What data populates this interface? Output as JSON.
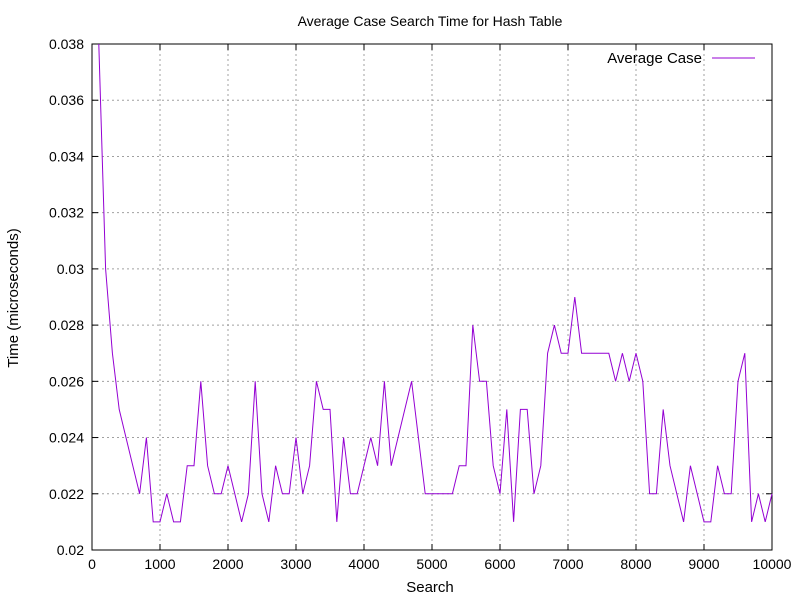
{
  "chart_data": {
    "type": "line",
    "title": "Average Case Search Time for Hash Table",
    "xlabel": "Search",
    "ylabel": "Time (microseconds)",
    "xlim": [
      0,
      10000
    ],
    "ylim": [
      0.02,
      0.038
    ],
    "x_ticks": [
      "0",
      "1000",
      "2000",
      "3000",
      "4000",
      "5000",
      "6000",
      "7000",
      "8000",
      "9000",
      "10000"
    ],
    "y_ticks": [
      "0.02",
      "0.022",
      "0.024",
      "0.026",
      "0.028",
      "0.03",
      "0.032",
      "0.034",
      "0.036",
      "0.038"
    ],
    "grid": true,
    "legend_position": "top-right",
    "series": [
      {
        "name": "Average Case",
        "color": "#9400d3",
        "x": [
          100,
          200,
          300,
          400,
          500,
          600,
          700,
          800,
          900,
          1000,
          1100,
          1200,
          1300,
          1400,
          1500,
          1600,
          1700,
          1800,
          1900,
          2000,
          2100,
          2200,
          2300,
          2400,
          2500,
          2600,
          2700,
          2800,
          2900,
          3000,
          3100,
          3200,
          3300,
          3400,
          3500,
          3600,
          3700,
          3800,
          3900,
          4000,
          4100,
          4200,
          4300,
          4400,
          4500,
          4600,
          4700,
          4800,
          4900,
          5000,
          5100,
          5200,
          5300,
          5400,
          5500,
          5600,
          5700,
          5800,
          5900,
          6000,
          6100,
          6200,
          6300,
          6400,
          6500,
          6600,
          6700,
          6800,
          6900,
          7000,
          7100,
          7200,
          7300,
          7400,
          7500,
          7600,
          7700,
          7800,
          7900,
          8000,
          8100,
          8200,
          8300,
          8400,
          8500,
          8600,
          8700,
          8800,
          8900,
          9000,
          9100,
          9200,
          9300,
          9400,
          9500,
          9600,
          9700,
          9800,
          9900,
          10000
        ],
        "y": [
          0.038,
          0.03,
          0.027,
          0.025,
          0.024,
          0.023,
          0.022,
          0.024,
          0.021,
          0.021,
          0.022,
          0.021,
          0.021,
          0.023,
          0.023,
          0.026,
          0.023,
          0.022,
          0.022,
          0.023,
          0.022,
          0.021,
          0.022,
          0.026,
          0.022,
          0.021,
          0.023,
          0.022,
          0.022,
          0.024,
          0.022,
          0.023,
          0.026,
          0.025,
          0.025,
          0.021,
          0.024,
          0.022,
          0.022,
          0.023,
          0.024,
          0.023,
          0.026,
          0.023,
          0.024,
          0.025,
          0.026,
          0.024,
          0.022,
          0.022,
          0.022,
          0.022,
          0.022,
          0.023,
          0.023,
          0.028,
          0.026,
          0.026,
          0.023,
          0.022,
          0.025,
          0.021,
          0.025,
          0.025,
          0.022,
          0.023,
          0.027,
          0.028,
          0.027,
          0.027,
          0.029,
          0.027,
          0.027,
          0.027,
          0.027,
          0.027,
          0.026,
          0.027,
          0.026,
          0.027,
          0.026,
          0.022,
          0.022,
          0.025,
          0.023,
          0.022,
          0.021,
          0.023,
          0.022,
          0.021,
          0.021,
          0.023,
          0.022,
          0.022,
          0.026,
          0.027,
          0.021,
          0.022,
          0.021,
          0.022
        ]
      }
    ]
  }
}
